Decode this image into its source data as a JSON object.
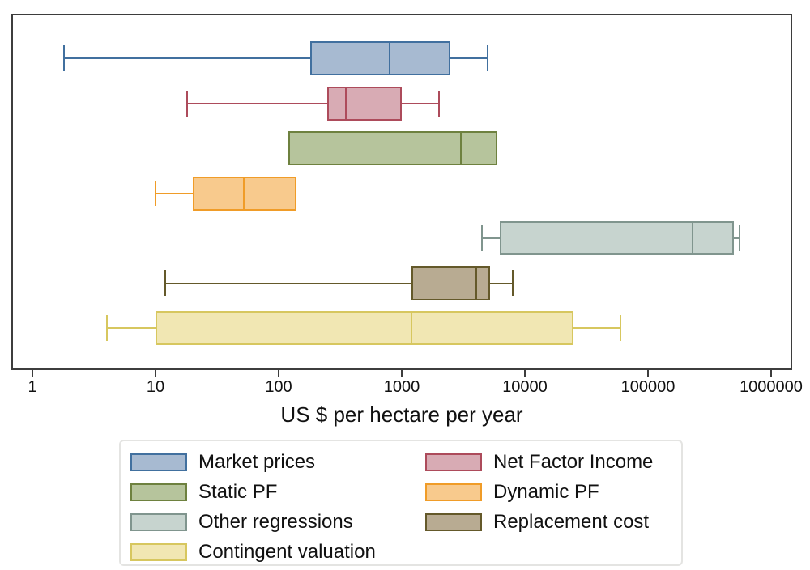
{
  "chart_data": {
    "type": "boxplot",
    "orientation": "horizontal",
    "title": "",
    "xlabel": "US $ per hectare per year",
    "x_scale": "log10",
    "xlim": [
      0.7,
      1500000
    ],
    "x_ticks": [
      1,
      10,
      100,
      1000,
      10000,
      100000,
      1000000
    ],
    "x_tick_labels": [
      "1",
      "10",
      "100",
      "1000",
      "10000",
      "100000",
      "1000000"
    ],
    "grid": false,
    "frame_color": "#3d3d3d",
    "series": [
      {
        "name": "Market prices",
        "whisker_low": 1.8,
        "q1": 180,
        "median": 800,
        "q3": 2500,
        "whisker_high": 5000,
        "fill": "#a7bad1",
        "stroke": "#41709f"
      },
      {
        "name": "Net Factor Income",
        "whisker_low": 18,
        "q1": 250,
        "median": 350,
        "q3": 1000,
        "whisker_high": 2000,
        "fill": "#d8abb4",
        "stroke": "#ad4b5b"
      },
      {
        "name": "Static PF",
        "whisker_low": 120,
        "q1": 120,
        "median": 3000,
        "q3": 6000,
        "whisker_high": 6000,
        "fill": "#b6c49c",
        "stroke": "#6e813f"
      },
      {
        "name": "Dynamic PF",
        "whisker_low": 10,
        "q1": 20,
        "median": 52,
        "q3": 140,
        "whisker_high": 140,
        "fill": "#f8ca8d",
        "stroke": "#f09c28"
      },
      {
        "name": "Other regressions",
        "whisker_low": 4500,
        "q1": 6300,
        "median": 230000,
        "q3": 500000,
        "whisker_high": 550000,
        "fill": "#c7d4cf",
        "stroke": "#80958e"
      },
      {
        "name": "Replacement cost",
        "whisker_low": 12,
        "q1": 1200,
        "median": 4000,
        "q3": 5200,
        "whisker_high": 8000,
        "fill": "#b8ab92",
        "stroke": "#64592a"
      },
      {
        "name": "Contingent valuation",
        "whisker_low": 4,
        "q1": 10,
        "median": 1200,
        "q3": 25000,
        "whisker_high": 60000,
        "fill": "#f1e7b3",
        "stroke": "#d7c75f"
      }
    ],
    "legend": {
      "position": "bottom",
      "columns": 2,
      "entries": [
        "Market prices",
        "Net Factor Income",
        "Static PF",
        "Dynamic PF",
        "Other regressions",
        "Replacement cost",
        "Contingent valuation"
      ]
    }
  }
}
